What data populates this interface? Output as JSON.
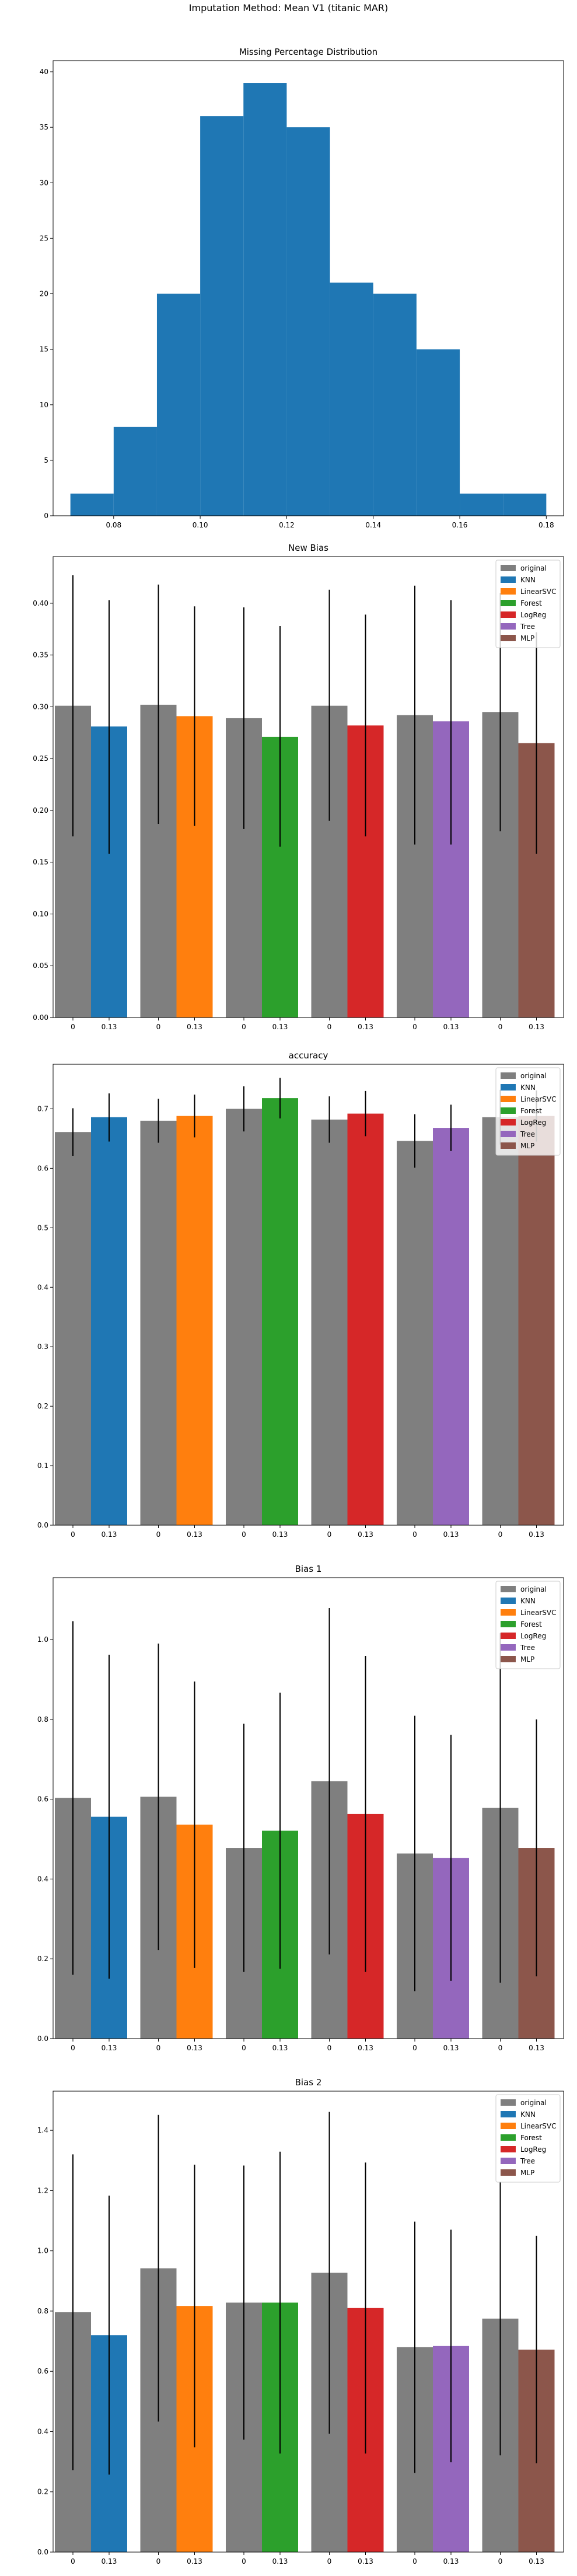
{
  "figure": {
    "title": "Imputation Method: Mean V1 (titanic MAR)"
  },
  "colors": {
    "original": "#7f7f7f",
    "KNN": "#1f77b4",
    "LinearSVC": "#ff7f0e",
    "Forest": "#2ca02c",
    "LogReg": "#d62728",
    "Tree": "#9467bd",
    "MLP": "#8c564b",
    "hist": "#1f77b4"
  },
  "chart_data": [
    {
      "type": "bar",
      "subtype": "histogram",
      "title": "Missing Percentage Distribution",
      "xlabel": "",
      "ylabel": "",
      "bins": [
        {
          "x0": 0.07,
          "x1": 0.08,
          "count": 2
        },
        {
          "x0": 0.08,
          "x1": 0.09,
          "count": 8
        },
        {
          "x0": 0.09,
          "x1": 0.1,
          "count": 20
        },
        {
          "x0": 0.1,
          "x1": 0.11,
          "count": 36
        },
        {
          "x0": 0.11,
          "x1": 0.12,
          "count": 39
        },
        {
          "x0": 0.12,
          "x1": 0.13,
          "count": 35
        },
        {
          "x0": 0.13,
          "x1": 0.14,
          "count": 21
        },
        {
          "x0": 0.14,
          "x1": 0.15,
          "count": 20
        },
        {
          "x0": 0.15,
          "x1": 0.16,
          "count": 15
        },
        {
          "x0": 0.16,
          "x1": 0.17,
          "count": 2
        },
        {
          "x0": 0.17,
          "x1": 0.18,
          "count": 2
        }
      ],
      "xlim": [
        0.066,
        0.184
      ],
      "ylim": [
        0,
        41
      ],
      "xticks": [
        "0.08",
        "0.10",
        "0.12",
        "0.14",
        "0.16",
        "0.18"
      ],
      "yticks": [
        "0",
        "5",
        "10",
        "15",
        "20",
        "25",
        "30",
        "35",
        "40"
      ],
      "grid": false
    },
    {
      "type": "bar",
      "title": "New Bias",
      "xlabel": "",
      "ylabel": "",
      "legend": {
        "position": "top-right",
        "entries": [
          "original",
          "KNN",
          "LinearSVC",
          "Forest",
          "LogReg",
          "Tree",
          "MLP"
        ]
      },
      "ylim": [
        0,
        0.445
      ],
      "yticks": [
        "0.00",
        "0.05",
        "0.10",
        "0.15",
        "0.20",
        "0.25",
        "0.30",
        "0.35",
        "0.40"
      ],
      "groups": [
        {
          "method": "KNN",
          "labels": [
            "0",
            "0.13"
          ],
          "values": [
            0.301,
            0.281
          ],
          "err_low": [
            0.175,
            0.158
          ],
          "err_high": [
            0.427,
            0.403
          ]
        },
        {
          "method": "LinearSVC",
          "labels": [
            "0",
            "0.13"
          ],
          "values": [
            0.302,
            0.291
          ],
          "err_low": [
            0.187,
            0.185
          ],
          "err_high": [
            0.418,
            0.397
          ]
        },
        {
          "method": "Forest",
          "labels": [
            "0",
            "0.13"
          ],
          "values": [
            0.289,
            0.271
          ],
          "err_low": [
            0.182,
            0.165
          ],
          "err_high": [
            0.396,
            0.378
          ]
        },
        {
          "method": "LogReg",
          "labels": [
            "0",
            "0.13"
          ],
          "values": [
            0.301,
            0.282
          ],
          "err_low": [
            0.19,
            0.175
          ],
          "err_high": [
            0.413,
            0.389
          ]
        },
        {
          "method": "Tree",
          "labels": [
            "0",
            "0.13"
          ],
          "values": [
            0.292,
            0.286
          ],
          "err_low": [
            0.167,
            0.167
          ],
          "err_high": [
            0.417,
            0.403
          ]
        },
        {
          "method": "MLP",
          "labels": [
            "0",
            "0.13"
          ],
          "values": [
            0.295,
            0.265
          ],
          "err_low": [
            0.18,
            0.158
          ],
          "err_high": [
            0.41,
            0.372
          ]
        }
      ],
      "grid": false
    },
    {
      "type": "bar",
      "title": "accuracy",
      "xlabel": "",
      "ylabel": "",
      "legend": {
        "position": "top-right",
        "entries": [
          "original",
          "KNN",
          "LinearSVC",
          "Forest",
          "LogReg",
          "Tree",
          "MLP"
        ]
      },
      "ylim": [
        0,
        0.775
      ],
      "yticks": [
        "0.0",
        "0.1",
        "0.2",
        "0.3",
        "0.4",
        "0.5",
        "0.6",
        "0.7"
      ],
      "groups": [
        {
          "method": "KNN",
          "labels": [
            "0",
            "0.13"
          ],
          "values": [
            0.661,
            0.686
          ],
          "err_low": [
            0.621,
            0.645
          ],
          "err_high": [
            0.701,
            0.726
          ]
        },
        {
          "method": "LinearSVC",
          "labels": [
            "0",
            "0.13"
          ],
          "values": [
            0.68,
            0.688
          ],
          "err_low": [
            0.643,
            0.652
          ],
          "err_high": [
            0.717,
            0.724
          ]
        },
        {
          "method": "Forest",
          "labels": [
            "0",
            "0.13"
          ],
          "values": [
            0.7,
            0.718
          ],
          "err_low": [
            0.662,
            0.684
          ],
          "err_high": [
            0.738,
            0.752
          ]
        },
        {
          "method": "LogReg",
          "labels": [
            "0",
            "0.13"
          ],
          "values": [
            0.682,
            0.692
          ],
          "err_low": [
            0.643,
            0.654
          ],
          "err_high": [
            0.721,
            0.73
          ]
        },
        {
          "method": "Tree",
          "labels": [
            "0",
            "0.13"
          ],
          "values": [
            0.646,
            0.668
          ],
          "err_low": [
            0.601,
            0.629
          ],
          "err_high": [
            0.691,
            0.707
          ]
        },
        {
          "method": "MLP",
          "labels": [
            "0",
            "0.13"
          ],
          "values": [
            0.686,
            0.688
          ],
          "err_low": [
            0.64,
            0.645
          ],
          "err_high": [
            0.732,
            0.731
          ]
        }
      ],
      "grid": false
    },
    {
      "type": "bar",
      "title": "Bias 1",
      "xlabel": "",
      "ylabel": "",
      "legend": {
        "position": "top-right",
        "entries": [
          "original",
          "KNN",
          "LinearSVC",
          "Forest",
          "LogReg",
          "Tree",
          "MLP"
        ]
      },
      "ylim": [
        0,
        1.155
      ],
      "yticks": [
        "0.0",
        "0.2",
        "0.4",
        "0.6",
        "0.8",
        "1.0"
      ],
      "groups": [
        {
          "method": "KNN",
          "labels": [
            "0",
            "0.13"
          ],
          "values": [
            0.603,
            0.556
          ],
          "err_low": [
            0.16,
            0.15
          ],
          "err_high": [
            1.046,
            0.962
          ]
        },
        {
          "method": "LinearSVC",
          "labels": [
            "0",
            "0.13"
          ],
          "values": [
            0.606,
            0.536
          ],
          "err_low": [
            0.222,
            0.177
          ],
          "err_high": [
            0.99,
            0.895
          ]
        },
        {
          "method": "Forest",
          "labels": [
            "0",
            "0.13"
          ],
          "values": [
            0.478,
            0.521
          ],
          "err_low": [
            0.167,
            0.175
          ],
          "err_high": [
            0.789,
            0.867
          ]
        },
        {
          "method": "LogReg",
          "labels": [
            "0",
            "0.13"
          ],
          "values": [
            0.645,
            0.563
          ],
          "err_low": [
            0.211,
            0.167
          ],
          "err_high": [
            1.079,
            0.959
          ]
        },
        {
          "method": "Tree",
          "labels": [
            "0",
            "0.13"
          ],
          "values": [
            0.464,
            0.453
          ],
          "err_low": [
            0.119,
            0.145
          ],
          "err_high": [
            0.809,
            0.761
          ]
        },
        {
          "method": "MLP",
          "labels": [
            "0",
            "0.13"
          ],
          "values": [
            0.578,
            0.478
          ],
          "err_low": [
            0.14,
            0.156
          ],
          "err_high": [
            1.016,
            0.8
          ]
        }
      ],
      "grid": false
    },
    {
      "type": "bar",
      "title": "Bias 2",
      "xlabel": "",
      "ylabel": "",
      "legend": {
        "position": "top-right",
        "entries": [
          "original",
          "KNN",
          "LinearSVC",
          "Forest",
          "LogReg",
          "Tree",
          "MLP"
        ]
      },
      "ylim": [
        0,
        1.53
      ],
      "yticks": [
        "0.0",
        "0.2",
        "0.4",
        "0.6",
        "0.8",
        "1.0",
        "1.2",
        "1.4"
      ],
      "groups": [
        {
          "method": "KNN",
          "labels": [
            "0",
            "0.13"
          ],
          "values": [
            0.796,
            0.72
          ],
          "err_low": [
            0.272,
            0.257
          ],
          "err_high": [
            1.32,
            1.183
          ]
        },
        {
          "method": "LinearSVC",
          "labels": [
            "0",
            "0.13"
          ],
          "values": [
            0.942,
            0.817
          ],
          "err_low": [
            0.433,
            0.348
          ],
          "err_high": [
            1.451,
            1.286
          ]
        },
        {
          "method": "Forest",
          "labels": [
            "0",
            "0.13"
          ],
          "values": [
            0.828,
            0.828
          ],
          "err_low": [
            0.373,
            0.327
          ],
          "err_high": [
            1.283,
            1.329
          ]
        },
        {
          "method": "LogReg",
          "labels": [
            "0",
            "0.13"
          ],
          "values": [
            0.927,
            0.81
          ],
          "err_low": [
            0.393,
            0.327
          ],
          "err_high": [
            1.461,
            1.293
          ]
        },
        {
          "method": "Tree",
          "labels": [
            "0",
            "0.13"
          ],
          "values": [
            0.68,
            0.684
          ],
          "err_low": [
            0.263,
            0.298
          ],
          "err_high": [
            1.097,
            1.07
          ]
        },
        {
          "method": "MLP",
          "labels": [
            "0",
            "0.13"
          ],
          "values": [
            0.775,
            0.672
          ],
          "err_low": [
            0.321,
            0.295
          ],
          "err_high": [
            1.229,
            1.05
          ]
        }
      ],
      "grid": false
    }
  ]
}
